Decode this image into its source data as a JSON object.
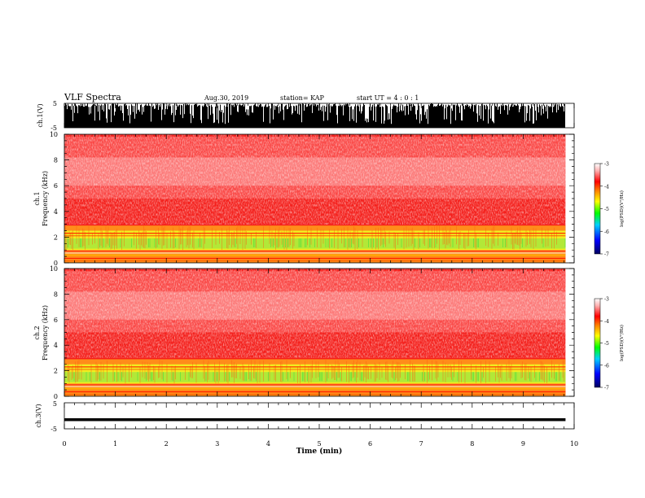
{
  "header": {
    "title": "VLF Spectra",
    "date": "Aug.30, 2019",
    "station": "station= KAP",
    "start": "start  UT  =   4 : 0  : 1"
  },
  "chart_data": [
    {
      "type": "line",
      "name": "ch1-waveform-panel",
      "ylabel": "ch.1(V)",
      "yticks": [
        "5",
        "-5"
      ],
      "ylim": [
        -5,
        5
      ],
      "xlim": [
        0,
        10
      ]
    },
    {
      "type": "heatmap",
      "name": "ch1-spectrogram",
      "ylabel_line1": "ch.1",
      "ylabel_line2": "Frequency  (kHz)",
      "yticks": [
        "0",
        "2",
        "4",
        "6",
        "8",
        "10"
      ],
      "ylim": [
        0,
        10
      ],
      "xlim": [
        0,
        10
      ],
      "data_end_min": 9.83
    },
    {
      "type": "heatmap",
      "name": "ch2-spectrogram",
      "ylabel_line1": "ch.2",
      "ylabel_line2": "Frequency  (kHz)",
      "yticks": [
        "0",
        "2",
        "4",
        "6",
        "8",
        "10"
      ],
      "ylim": [
        0,
        10
      ],
      "xlim": [
        0,
        10
      ],
      "data_end_min": 9.83
    },
    {
      "type": "line",
      "name": "ch3-waveform-panel",
      "ylabel": "ch.3(V)",
      "yticks": [
        "5",
        "-5"
      ],
      "ylim": [
        -5,
        5
      ],
      "xlim": [
        0,
        10
      ],
      "level_v": -1.5
    }
  ],
  "xaxis": {
    "label": "Time  (min)",
    "ticks": [
      "0",
      "1",
      "2",
      "3",
      "4",
      "5",
      "6",
      "7",
      "8",
      "9",
      "10"
    ]
  },
  "colorbar": {
    "ticks": [
      "-3",
      "-4",
      "-5",
      "-6",
      "-7"
    ],
    "range": [
      -7,
      -3
    ],
    "label": "log(PSD)(V²/Hz)",
    "colors": [
      "#000080",
      "#0000ff",
      "#00c8ff",
      "#00ff00",
      "#ffff00",
      "#ff8000",
      "#ff0000",
      "#ffc0c0",
      "#ffffff"
    ]
  }
}
